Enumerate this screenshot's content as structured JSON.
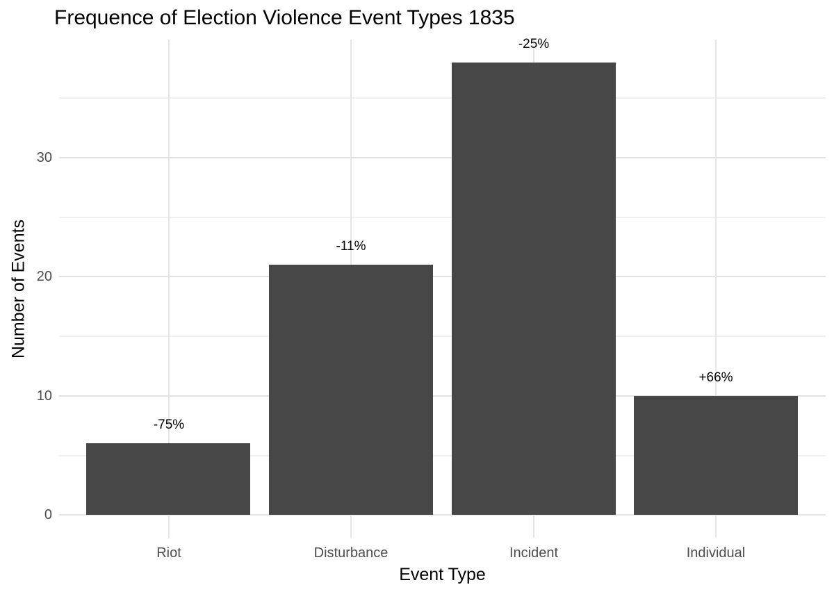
{
  "chart_data": {
    "type": "bar",
    "title": "Frequence of Election Violence Event Types 1835",
    "xlabel": "Event Type",
    "ylabel": "Number of Events",
    "categories": [
      "Riot",
      "Disturbance",
      "Incident",
      "Individual"
    ],
    "values": [
      6,
      21,
      38,
      10
    ],
    "bar_labels": [
      "-75%",
      "-11%",
      "-25%",
      "+66%"
    ],
    "yticks": [
      0,
      10,
      20,
      30
    ],
    "minor_yticks": [
      5,
      15,
      25,
      35
    ],
    "ylim": [
      -1.9,
      39.9
    ],
    "grid": true,
    "legend": "none",
    "colors": {
      "bar": "#474747",
      "grid_major": "#e2e2e2",
      "grid_minor": "#f0f0f0",
      "grid_vertical": "#e6e6e6",
      "tick_text": "#4d4d4d",
      "title_text": "#000000",
      "axis_title_text": "#000000",
      "background": "#ffffff"
    }
  }
}
